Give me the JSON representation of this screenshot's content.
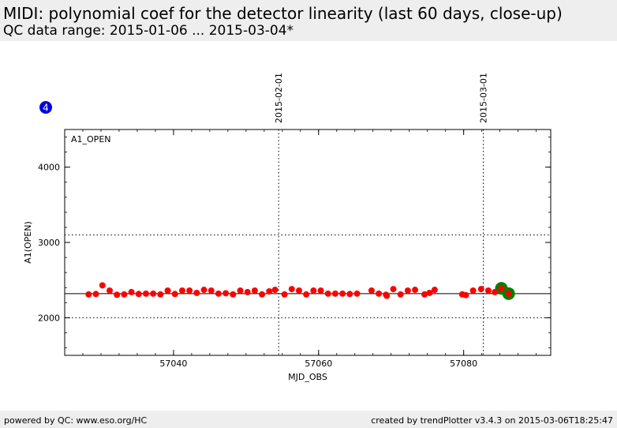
{
  "header": {
    "title": "MIDI: polynomial coef for the detector linearity (last 60 days, close-up)",
    "subtitle": "QC data range: 2015-01-06 ... 2015-03-04*"
  },
  "footer": {
    "left": "powered by QC: www.eso.org/HC",
    "right": "created by trendPlotter v3.4.3 on 2015-03-06T18:25:47"
  },
  "badge": {
    "label": "4",
    "color": "#0000dd"
  },
  "colors": {
    "points": "#ff0000",
    "highlight": "#008000",
    "reference": "#000000"
  },
  "chart_data": {
    "type": "scatter",
    "panel_label": "A1_OPEN",
    "xlabel": "MJD_OBS",
    "ylabel": "A1(OPEN)",
    "xlim": [
      57025,
      57092
    ],
    "ylim": [
      1500,
      4500
    ],
    "xticks": [
      57040,
      57060,
      57080
    ],
    "yticks": [
      2000,
      3000,
      4000
    ],
    "reference_line": 2320,
    "threshold_lines": [
      2000,
      3100
    ],
    "date_markers": [
      {
        "label": "2015-02-01",
        "x": 57054.5
      },
      {
        "label": "2015-03-01",
        "x": 57082.7
      }
    ],
    "points": [
      [
        57028.3,
        2310
      ],
      [
        57029.3,
        2315
      ],
      [
        57030.2,
        2430
      ],
      [
        57031.2,
        2360
      ],
      [
        57032.2,
        2305
      ],
      [
        57033.2,
        2310
      ],
      [
        57034.2,
        2340
      ],
      [
        57035.2,
        2315
      ],
      [
        57036.2,
        2320
      ],
      [
        57037.2,
        2320
      ],
      [
        57038.2,
        2310
      ],
      [
        57039.2,
        2360
      ],
      [
        57040.2,
        2315
      ],
      [
        57041.2,
        2360
      ],
      [
        57042.2,
        2360
      ],
      [
        57043.2,
        2330
      ],
      [
        57044.2,
        2370
      ],
      [
        57045.2,
        2360
      ],
      [
        57046.2,
        2320
      ],
      [
        57047.2,
        2325
      ],
      [
        57048.2,
        2310
      ],
      [
        57049.2,
        2360
      ],
      [
        57050.2,
        2340
      ],
      [
        57051.2,
        2360
      ],
      [
        57052.2,
        2310
      ],
      [
        57053.2,
        2350
      ],
      [
        57054.0,
        2370
      ],
      [
        57055.3,
        2310
      ],
      [
        57056.3,
        2380
      ],
      [
        57057.3,
        2360
      ],
      [
        57058.3,
        2310
      ],
      [
        57059.3,
        2360
      ],
      [
        57060.3,
        2360
      ],
      [
        57061.3,
        2320
      ],
      [
        57062.3,
        2320
      ],
      [
        57063.3,
        2320
      ],
      [
        57064.3,
        2315
      ],
      [
        57065.3,
        2320
      ],
      [
        57067.3,
        2360
      ],
      [
        57068.3,
        2320
      ],
      [
        57069.3,
        2305
      ],
      [
        57069.4,
        2290
      ],
      [
        57070.3,
        2380
      ],
      [
        57071.3,
        2310
      ],
      [
        57072.3,
        2360
      ],
      [
        57073.3,
        2370
      ],
      [
        57074.6,
        2310
      ],
      [
        57075.3,
        2330
      ],
      [
        57076.0,
        2370
      ],
      [
        57079.8,
        2310
      ],
      [
        57080.3,
        2300
      ],
      [
        57081.3,
        2360
      ],
      [
        57082.4,
        2380
      ],
      [
        57083.4,
        2360
      ],
      [
        57084.3,
        2340
      ],
      [
        57085.2,
        2390
      ],
      [
        57086.2,
        2320
      ]
    ],
    "highlighted_points": [
      [
        57085.2,
        2390
      ],
      [
        57086.2,
        2320
      ]
    ]
  }
}
